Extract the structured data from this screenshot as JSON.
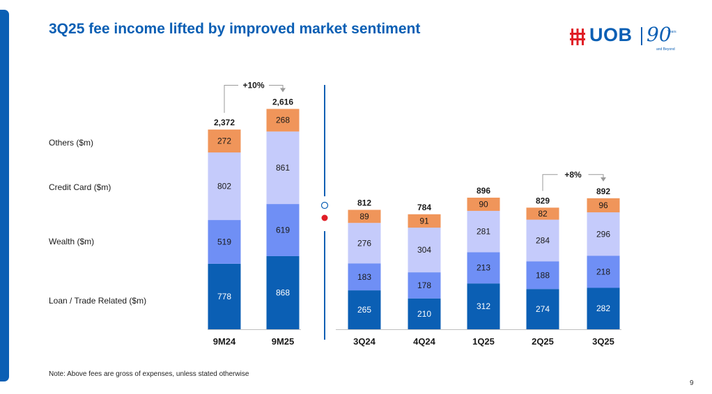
{
  "slide": {
    "title": "3Q25 fee income lifted by improved market sentiment",
    "logo_text": "UOB",
    "logo_anniversary": "90",
    "logo_years": "Years",
    "logo_beyond": "and Beyond",
    "note": "Note: Above fees are gross of expenses, unless stated otherwise",
    "page_number": "9"
  },
  "colors": {
    "brand": "#0b5fb4",
    "loan": "#0b5fb4",
    "wealth": "#6f8ff5",
    "credit_card": "#c5cbfb",
    "others": "#f0955a"
  },
  "chart_data": {
    "type": "bar",
    "stacked": true,
    "series_labels": [
      "Loan / Trade Related ($m)",
      "Wealth ($m)",
      "Credit Card ($m)",
      "Others ($m)"
    ],
    "groups": [
      {
        "categories": [
          "9M24",
          "9M25"
        ],
        "series": [
          {
            "name": "Loan / Trade Related ($m)",
            "values": [
              778,
              868
            ]
          },
          {
            "name": "Wealth ($m)",
            "values": [
              519,
              619
            ]
          },
          {
            "name": "Credit Card ($m)",
            "values": [
              802,
              861
            ]
          },
          {
            "name": "Others ($m)",
            "values": [
              272,
              268
            ]
          }
        ],
        "totals": [
          "2,372",
          "2,616"
        ],
        "change": {
          "label": "+10%",
          "from": "9M24",
          "to": "9M25"
        }
      },
      {
        "categories": [
          "3Q24",
          "4Q24",
          "1Q25",
          "2Q25",
          "3Q25"
        ],
        "series": [
          {
            "name": "Loan / Trade Related ($m)",
            "values": [
              265,
              210,
              312,
              274,
              282
            ]
          },
          {
            "name": "Wealth ($m)",
            "values": [
              183,
              178,
              213,
              188,
              218
            ]
          },
          {
            "name": "Credit Card ($m)",
            "values": [
              276,
              304,
              281,
              284,
              296
            ]
          },
          {
            "name": "Others ($m)",
            "values": [
              89,
              91,
              90,
              82,
              96
            ]
          }
        ],
        "totals": [
          "812",
          "784",
          "896",
          "829",
          "892"
        ],
        "change": {
          "label": "+8%",
          "from": "2Q25",
          "to": "3Q25"
        }
      }
    ]
  }
}
